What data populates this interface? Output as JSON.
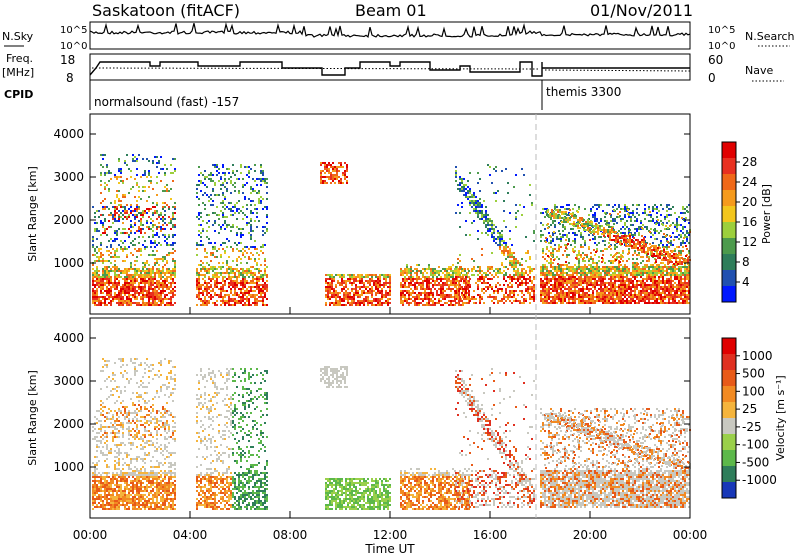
{
  "header": {
    "station": "Saskatoon (fitACF)",
    "beam": "Beam 01",
    "date": "01/Nov/2011"
  },
  "top_panels": {
    "nsky_label": "N.Sky",
    "nsearch_label": "N.Search",
    "nsky_ticks": [
      "10^5",
      "10^0"
    ],
    "nsearch_ticks": [
      "10^5",
      "10^0"
    ],
    "freq_label_1": "Freq.",
    "freq_label_2": "[MHz]",
    "freq_ticks": [
      "18",
      "8"
    ],
    "nave_label": "Nave",
    "nave_ticks": [
      "60",
      "0"
    ],
    "cpid_label": "CPID",
    "cpid_1": "normalsound (fast) -157",
    "cpid_2": "themis 3300"
  },
  "power_panel": {
    "ylabel": "Slant Range [km]",
    "yticks": [
      "4000",
      "3000",
      "2000",
      "1000"
    ],
    "colorbar_label": "Power [dB]",
    "colorbar_ticks": [
      "28",
      "24",
      "20",
      "16",
      "12",
      "8",
      "4"
    ],
    "colors": [
      "#0018ff",
      "#2050b0",
      "#2e7d5a",
      "#4c9a4c",
      "#9ccf3c",
      "#f3c61c",
      "#f59a1c",
      "#f06818",
      "#e83020",
      "#e00000"
    ]
  },
  "velocity_panel": {
    "ylabel": "Slant Range [km]",
    "yticks": [
      "4000",
      "3000",
      "2000",
      "1000"
    ],
    "colorbar_label": "Velocity [m s⁻¹]",
    "colorbar_ticks": [
      "1000",
      "500",
      "100",
      "25",
      "-25",
      "-100",
      "-500",
      "-1000"
    ],
    "colors": [
      "#1838b8",
      "#2e7d5a",
      "#5cb84a",
      "#9ad04a",
      "#c8c8c0",
      "#f5b43c",
      "#f28a22",
      "#e85a18",
      "#e03020",
      "#e00000"
    ]
  },
  "xaxis": {
    "ticks": [
      "00:00",
      "04:00",
      "08:00",
      "12:00",
      "16:00",
      "20:00",
      "00:00"
    ],
    "label": "Time UT"
  }
}
